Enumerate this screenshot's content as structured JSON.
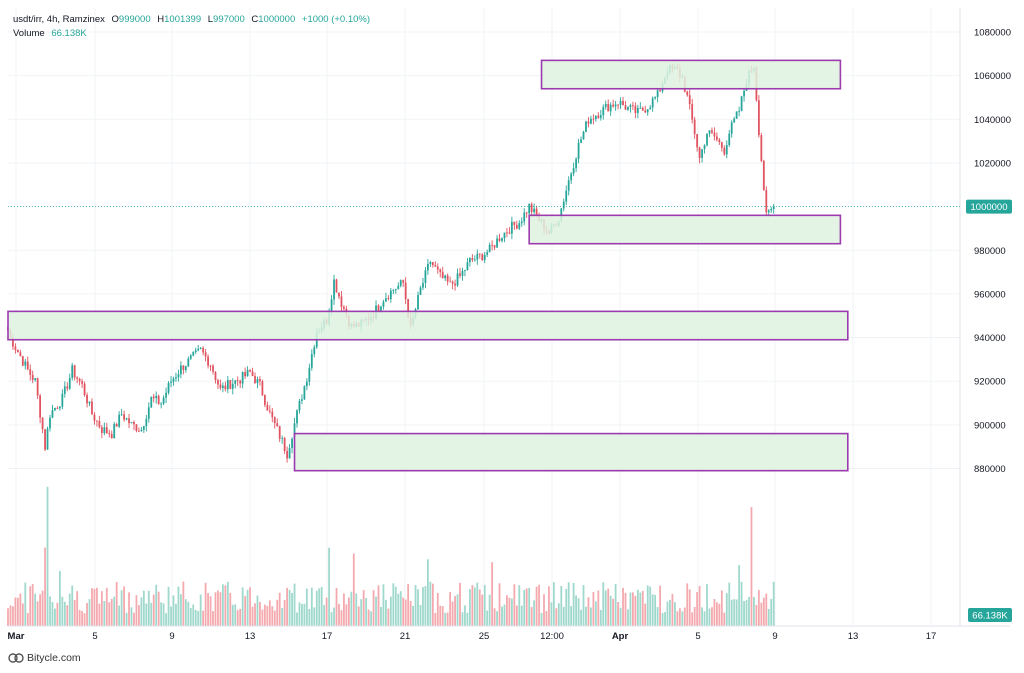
{
  "legend": {
    "symbol": "usdt/irr, 4h, Ramzinex",
    "o_label": "O",
    "o_value": "999000",
    "h_label": "H",
    "h_value": "1001399",
    "l_label": "L",
    "l_value": "997000",
    "c_label": "C",
    "c_value": "1000000",
    "change": "+1000 (+0.10%)",
    "volume_label": "Volume",
    "volume_value": "66.138K"
  },
  "brand": {
    "name": "Bitycle.com",
    "icon": "bitycle-logo-icon"
  },
  "colors": {
    "up": "#26a69a",
    "down": "#e0535f",
    "volume_up": "#9fd8cc",
    "volume_down": "#f4a9ae",
    "zone_fill": "#dff2df",
    "zone_stroke": "#9c3aaf",
    "price_badge": "#26a69a",
    "grid": "#f0f3f5"
  },
  "chart_data": {
    "type": "candlestick",
    "symbol": "usdt/irr",
    "timeframe": "4h",
    "exchange": "Ramzinex",
    "ylim": [
      872000,
      1082000
    ],
    "y_ticks": [
      880000,
      900000,
      920000,
      940000,
      960000,
      980000,
      1000000,
      1020000,
      1040000,
      1060000,
      1080000
    ],
    "x_ticks": [
      "Mar",
      "5",
      "9",
      "13",
      "17",
      "21",
      "25",
      "12:00",
      "Apr",
      "5",
      "9",
      "13",
      "17"
    ],
    "last_price": "1000000",
    "last_volume": "66.138K",
    "grid": true,
    "close_path": [
      [
        0,
        942000
      ],
      [
        8,
        925000
      ],
      [
        11,
        920000
      ],
      [
        14,
        898000
      ],
      [
        15,
        890000
      ],
      [
        17,
        905000
      ],
      [
        22,
        912000
      ],
      [
        26,
        925000
      ],
      [
        30,
        918000
      ],
      [
        34,
        905000
      ],
      [
        38,
        898000
      ],
      [
        42,
        896000
      ],
      [
        46,
        905000
      ],
      [
        50,
        900000
      ],
      [
        54,
        898000
      ],
      [
        58,
        912000
      ],
      [
        62,
        910000
      ],
      [
        66,
        920000
      ],
      [
        70,
        926000
      ],
      [
        74,
        930000
      ],
      [
        78,
        934000
      ],
      [
        82,
        928000
      ],
      [
        86,
        916000
      ],
      [
        90,
        919000
      ],
      [
        94,
        921000
      ],
      [
        98,
        924000
      ],
      [
        102,
        918000
      ],
      [
        106,
        905000
      ],
      [
        110,
        895000
      ],
      [
        113,
        887000
      ],
      [
        117,
        905000
      ],
      [
        121,
        922000
      ],
      [
        125,
        943000
      ],
      [
        129,
        948000
      ],
      [
        132,
        966000
      ],
      [
        135,
        956000
      ],
      [
        139,
        945000
      ],
      [
        143,
        946000
      ],
      [
        148,
        951000
      ],
      [
        152,
        958000
      ],
      [
        156,
        962000
      ],
      [
        160,
        965000
      ],
      [
        163,
        944000
      ],
      [
        167,
        962000
      ],
      [
        171,
        975000
      ],
      [
        175,
        968000
      ],
      [
        179,
        964000
      ],
      [
        183,
        968000
      ],
      [
        187,
        975000
      ],
      [
        191,
        977000
      ],
      [
        195,
        980000
      ],
      [
        199,
        986000
      ],
      [
        203,
        990000
      ],
      [
        207,
        993000
      ],
      [
        211,
        1000000
      ],
      [
        215,
        994000
      ],
      [
        219,
        988000
      ],
      [
        223,
        995000
      ],
      [
        227,
        1012000
      ],
      [
        231,
        1028000
      ],
      [
        235,
        1040000
      ],
      [
        239,
        1043000
      ],
      [
        243,
        1046000
      ],
      [
        247,
        1048000
      ],
      [
        251,
        1045000
      ],
      [
        255,
        1043000
      ],
      [
        259,
        1046000
      ],
      [
        263,
        1051000
      ],
      [
        267,
        1063000
      ],
      [
        271,
        1062000
      ],
      [
        273,
        1059000
      ],
      [
        275,
        1050000
      ],
      [
        278,
        1034000
      ],
      [
        280,
        1022000
      ],
      [
        283,
        1034000
      ],
      [
        286,
        1032000
      ],
      [
        290,
        1026000
      ],
      [
        292,
        1034000
      ],
      [
        296,
        1044000
      ],
      [
        299,
        1058000
      ],
      [
        302,
        1065000
      ],
      [
        304,
        1035000
      ],
      [
        307,
        995000
      ],
      [
        310,
        1000000
      ]
    ],
    "volume_ylim": [
      0,
      66000
    ],
    "zones": [
      {
        "price_low": 1054000,
        "price_high": 1067000,
        "from_bar": 216,
        "to_bar": 337
      },
      {
        "price_low": 983000,
        "price_high": 996000,
        "from_bar": 211,
        "to_bar": 337
      },
      {
        "price_low": 939000,
        "price_high": 952000,
        "from_bar": 0,
        "to_bar": 340
      },
      {
        "price_low": 879000,
        "price_high": 896000,
        "from_bar": 116,
        "to_bar": 340
      }
    ]
  }
}
